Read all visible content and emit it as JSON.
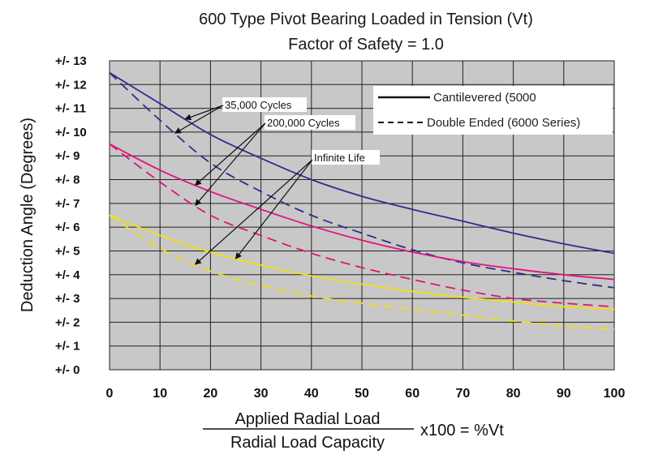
{
  "chart_data": {
    "type": "line",
    "title_lines": [
      "600 Type Pivot Bearing Loaded in Tension (Vt)",
      "Factor of Safety = 1.0"
    ],
    "ylabel": "Deduction Angle (Degrees)",
    "xlabel_numerator": "Applied Radial Load",
    "xlabel_denominator": "Radial Load Capacity",
    "xlabel_suffix": "x100 = %Vt",
    "xlim": [
      0,
      100
    ],
    "ylim": [
      0,
      13
    ],
    "x_ticks": [
      0,
      10,
      20,
      30,
      40,
      50,
      60,
      70,
      80,
      90,
      100
    ],
    "x_tick_labels": [
      "0",
      "10",
      "20",
      "30",
      "40",
      "50",
      "60",
      "70",
      "80",
      "90",
      "100"
    ],
    "y_ticks": [
      0,
      1,
      2,
      3,
      4,
      5,
      6,
      7,
      8,
      9,
      10,
      11,
      12,
      13
    ],
    "y_tick_labels": [
      "+/- 0",
      "+/- 1",
      "+/- 2",
      "+/- 3",
      "+/- 4",
      "+/- 5",
      "+/- 6",
      "+/- 7",
      "+/- 8",
      "+/- 9",
      "+/- 10",
      "+/- 11",
      "+/- 12",
      "+/- 13"
    ],
    "grid": true,
    "plot_background": "#c8c8c8",
    "legend": [
      {
        "label": "Cantilevered (5000",
        "style": "solid"
      },
      {
        "label": "Double Ended (6000 Series)",
        "style": "dashed"
      }
    ],
    "annotations": [
      "35,000 Cycles",
      "200,000 Cycles",
      "Infinite Life"
    ],
    "x": [
      0,
      10,
      20,
      30,
      40,
      50,
      60,
      70,
      80,
      90,
      100
    ],
    "series": [
      {
        "group": "35,000 Cycles",
        "style": "solid",
        "color": "#2e2e8c",
        "values": [
          12.5,
          11.2,
          9.9,
          8.9,
          8.0,
          7.3,
          6.75,
          6.25,
          5.75,
          5.3,
          4.9
        ]
      },
      {
        "group": "35,000 Cycles",
        "style": "dashed",
        "color": "#2e2e8c",
        "values": [
          12.5,
          10.5,
          8.7,
          7.5,
          6.5,
          5.75,
          5.05,
          4.5,
          4.1,
          3.75,
          3.45
        ]
      },
      {
        "group": "200,000 Cycles",
        "style": "solid",
        "color": "#e0147a",
        "values": [
          9.5,
          8.4,
          7.5,
          6.75,
          6.05,
          5.45,
          4.95,
          4.55,
          4.25,
          4.0,
          3.8
        ]
      },
      {
        "group": "200,000 Cycles",
        "style": "dashed",
        "color": "#e0147a",
        "values": [
          9.5,
          7.9,
          6.5,
          5.65,
          4.9,
          4.3,
          3.8,
          3.35,
          3.0,
          2.8,
          2.65
        ]
      },
      {
        "group": "Infinite Life",
        "style": "solid",
        "color": "#f2e010",
        "values": [
          6.5,
          5.65,
          4.95,
          4.4,
          3.95,
          3.6,
          3.3,
          3.05,
          2.85,
          2.65,
          2.55
        ]
      },
      {
        "group": "Infinite Life",
        "style": "dashed",
        "color": "#f2e010",
        "values": [
          6.5,
          5.1,
          4.15,
          3.55,
          3.1,
          2.8,
          2.55,
          2.3,
          2.05,
          1.85,
          1.7
        ]
      }
    ]
  }
}
